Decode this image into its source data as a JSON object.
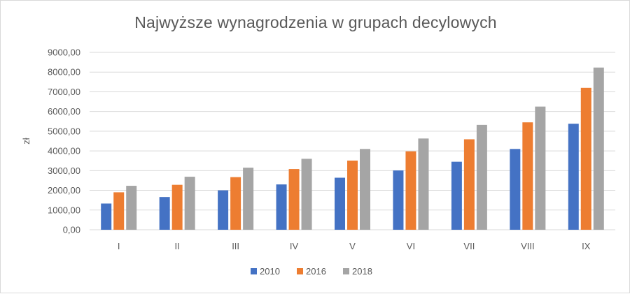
{
  "chart_data": {
    "type": "bar",
    "title": "Najwyższe wynagrodzenia w grupach decylowych",
    "xlabel": "",
    "ylabel": "zł",
    "categories": [
      "I",
      "II",
      "III",
      "IV",
      "V",
      "VI",
      "VII",
      "VIII",
      "IX"
    ],
    "series": [
      {
        "name": "2010",
        "color": "#4472c4",
        "values": [
          1330,
          1660,
          2000,
          2300,
          2640,
          3010,
          3450,
          4100,
          5380
        ]
      },
      {
        "name": "2016",
        "color": "#ed7d31",
        "values": [
          1900,
          2280,
          2670,
          3080,
          3510,
          3980,
          4590,
          5450,
          7200
        ]
      },
      {
        "name": "2018",
        "color": "#a5a5a5",
        "values": [
          2230,
          2690,
          3150,
          3600,
          4100,
          4630,
          5320,
          6250,
          8230
        ]
      }
    ],
    "ylim": [
      0,
      9000
    ],
    "yticks": [
      "0,00",
      "1000,00",
      "2000,00",
      "3000,00",
      "4000,00",
      "5000,00",
      "6000,00",
      "7000,00",
      "8000,00",
      "9000,00"
    ],
    "grid": true,
    "legend": "bottom"
  }
}
